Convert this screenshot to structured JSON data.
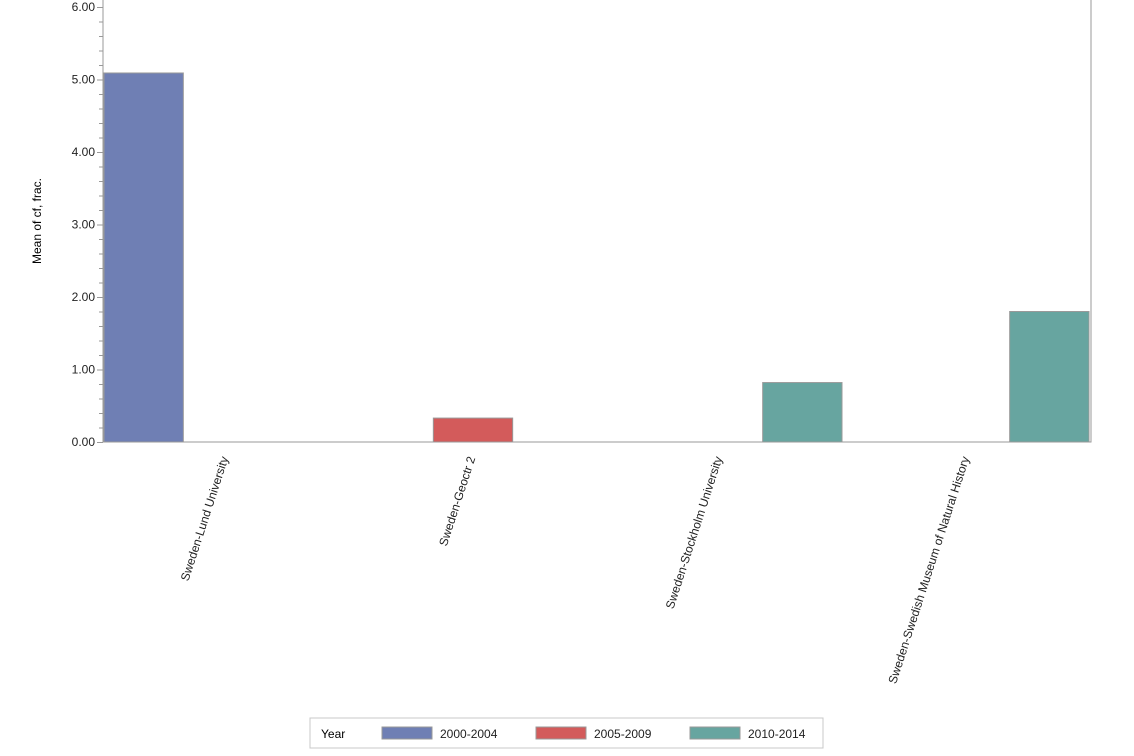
{
  "chart_data": {
    "type": "bar",
    "title": "",
    "xlabel": "",
    "ylabel": "Mean of cf, frac.",
    "ylim": [
      0,
      6
    ],
    "yticks": [
      "0.00",
      "1.00",
      "2.00",
      "3.00",
      "4.00",
      "5.00",
      "6.00"
    ],
    "categories": [
      "Sweden-Lund University",
      "Sweden-Geoctr 2",
      "Sweden-Stockholm University",
      "Sweden-Swedish Museum of Natural History"
    ],
    "legend_title": "Year",
    "legend_position": "bottom",
    "series": [
      {
        "name": "2000-2004",
        "color": "#6f7fb4",
        "values": [
          5.09,
          null,
          null,
          null
        ]
      },
      {
        "name": "2005-2009",
        "color": "#d35b5b",
        "values": [
          null,
          0.33,
          null,
          null
        ]
      },
      {
        "name": "2010-2014",
        "color": "#67a5a0",
        "values": [
          null,
          null,
          0.82,
          1.8
        ]
      }
    ]
  }
}
